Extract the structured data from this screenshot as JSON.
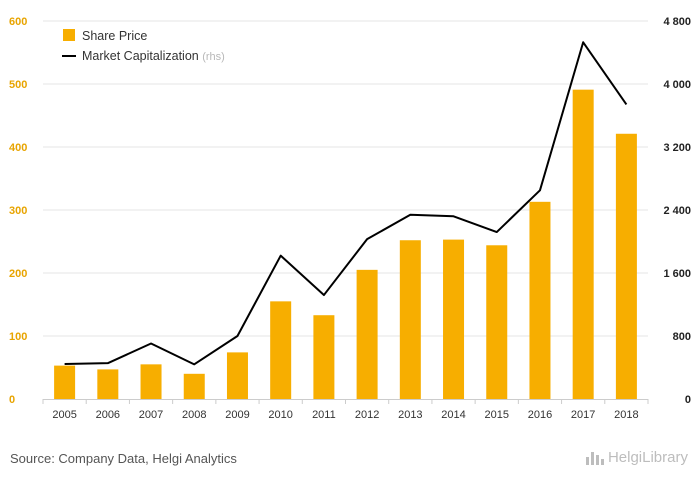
{
  "chart_data": {
    "type": "bar+line",
    "categories": [
      "2005",
      "2006",
      "2007",
      "2008",
      "2009",
      "2010",
      "2011",
      "2012",
      "2013",
      "2014",
      "2015",
      "2016",
      "2017",
      "2018"
    ],
    "series": [
      {
        "name": "Share Price",
        "type": "bar",
        "axis": "left",
        "color": "#f7ae00",
        "values": [
          53,
          47,
          55,
          40,
          74,
          155,
          133,
          205,
          252,
          253,
          244,
          313,
          491,
          421
        ]
      },
      {
        "name": "Market Capitalization",
        "name_suffix": "(rhs)",
        "type": "line",
        "axis": "right",
        "color": "#000000",
        "values": [
          445,
          455,
          705,
          440,
          800,
          1820,
          1320,
          2030,
          2340,
          2320,
          2120,
          2650,
          4530,
          3740
        ]
      }
    ],
    "y_left": {
      "ticks": [
        "0",
        "100",
        "200",
        "300",
        "400",
        "500",
        "600"
      ],
      "lim": [
        0,
        600
      ],
      "color": "#e8a400"
    },
    "y_right": {
      "ticks": [
        "0",
        "800",
        "1 600",
        "2 400",
        "3 200",
        "4 000",
        "4 800"
      ],
      "lim": [
        0,
        4800
      ]
    },
    "grid": true,
    "legend_position": "top-left"
  },
  "footer": {
    "source": "Source: Company Data, Helgi Analytics",
    "logo": "HelgiLibrary"
  }
}
